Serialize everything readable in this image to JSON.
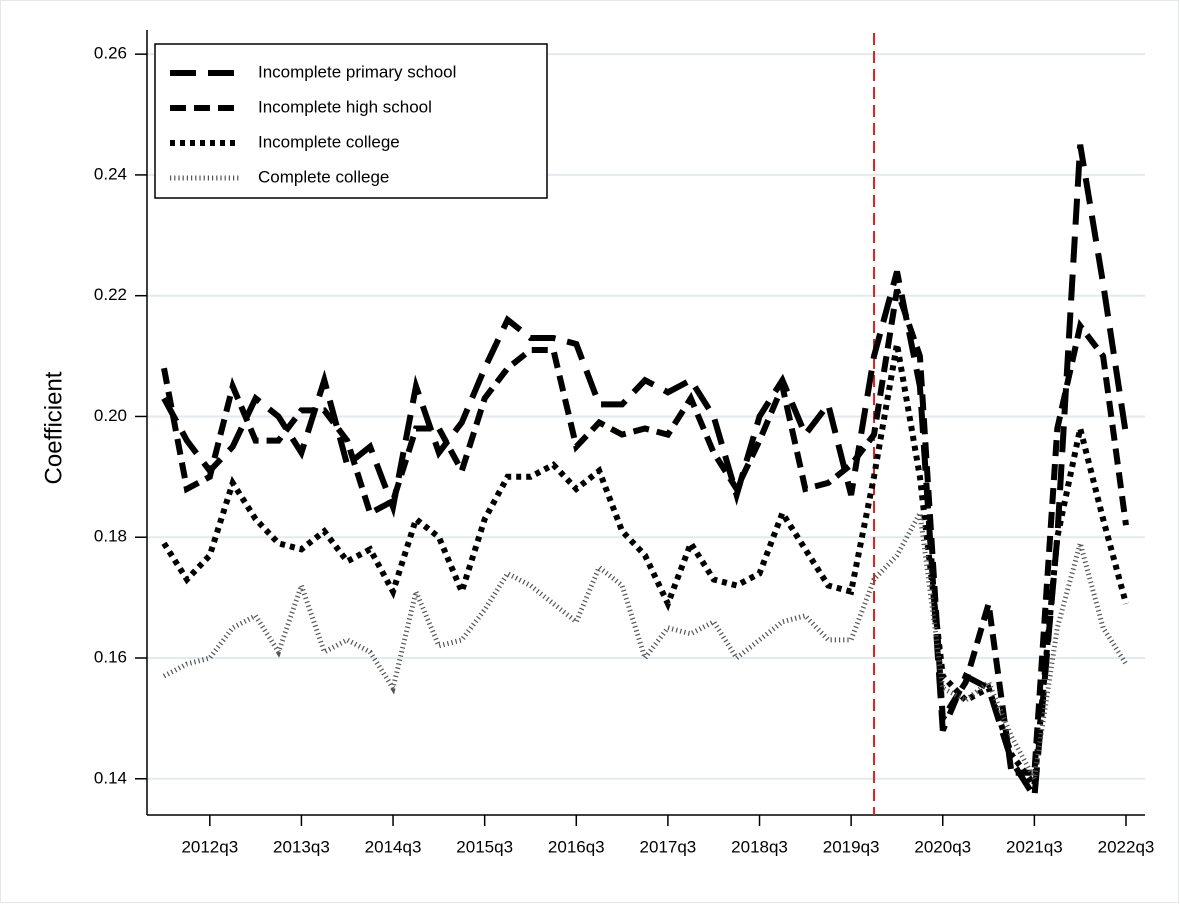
{
  "chart_data": {
    "type": "line",
    "ylabel": "Coefficient",
    "categories": [
      null,
      null,
      "2012q3",
      null,
      null,
      null,
      "2013q3",
      null,
      null,
      null,
      "2014q3",
      null,
      null,
      null,
      "2015q3",
      null,
      null,
      null,
      "2016q3",
      null,
      null,
      null,
      "2017q3",
      null,
      null,
      null,
      "2018q3",
      null,
      null,
      null,
      "2019q3",
      null,
      null,
      null,
      "2020q3",
      null,
      null,
      null,
      "2021q3",
      null,
      null,
      null,
      "2022q3"
    ],
    "series": [
      {
        "name": "Incomplete primary school",
        "color": "#000000",
        "width": 6,
        "dash": "26,12",
        "values": [
          0.203,
          0.196,
          0.191,
          0.195,
          0.203,
          0.2,
          0.194,
          0.206,
          0.192,
          0.195,
          0.185,
          0.205,
          0.194,
          0.199,
          0.208,
          0.216,
          0.213,
          0.213,
          0.212,
          0.202,
          0.202,
          0.206,
          0.204,
          0.206,
          0.2,
          0.187,
          0.2,
          0.206,
          0.197,
          0.202,
          0.187,
          0.21,
          0.224,
          0.205,
          0.148,
          0.157,
          0.155,
          0.143,
          0.137,
          0.18,
          0.245,
          0.222,
          0.197
        ]
      },
      {
        "name": "Incomplete high school",
        "color": "#000000",
        "width": 6,
        "dash": "16,8",
        "values": [
          0.208,
          0.188,
          0.19,
          0.205,
          0.196,
          0.196,
          0.201,
          0.201,
          0.196,
          0.184,
          0.186,
          0.198,
          0.198,
          0.191,
          0.203,
          0.208,
          0.211,
          0.211,
          0.195,
          0.199,
          0.197,
          0.198,
          0.197,
          0.203,
          0.194,
          0.188,
          0.196,
          0.205,
          0.188,
          0.189,
          0.192,
          0.197,
          0.221,
          0.21,
          0.15,
          0.156,
          0.169,
          0.141,
          0.141,
          0.198,
          0.215,
          0.21,
          0.182
        ]
      },
      {
        "name": "Incomplete college",
        "color": "#000000",
        "width": 6,
        "dash": "5,5",
        "values": [
          0.179,
          0.173,
          0.177,
          0.189,
          0.183,
          0.179,
          0.178,
          0.181,
          0.176,
          0.178,
          0.171,
          0.183,
          0.18,
          0.171,
          0.183,
          0.19,
          0.19,
          0.192,
          0.188,
          0.191,
          0.181,
          0.177,
          0.169,
          0.179,
          0.173,
          0.172,
          0.174,
          0.184,
          0.178,
          0.172,
          0.171,
          0.19,
          0.212,
          0.19,
          0.157,
          0.153,
          0.155,
          0.144,
          0.139,
          0.18,
          0.198,
          0.183,
          0.169
        ]
      },
      {
        "name": "Complete college",
        "color": "#555555",
        "width": 5,
        "dash": "1.2,3",
        "values": [
          0.157,
          0.159,
          0.16,
          0.165,
          0.167,
          0.161,
          0.172,
          0.161,
          0.163,
          0.161,
          0.155,
          0.171,
          0.162,
          0.163,
          0.168,
          0.174,
          0.172,
          0.169,
          0.166,
          0.175,
          0.172,
          0.16,
          0.165,
          0.164,
          0.166,
          0.16,
          0.163,
          0.166,
          0.167,
          0.163,
          0.163,
          0.173,
          0.177,
          0.184,
          0.155,
          0.153,
          0.156,
          0.147,
          0.14,
          0.165,
          0.179,
          0.165,
          0.159
        ]
      }
    ],
    "ylim": [
      0.134,
      0.264
    ],
    "yticks": [
      0.14,
      0.16,
      0.18,
      0.2,
      0.22,
      0.24,
      0.26
    ],
    "ytick_labels": [
      "0.14",
      "0.16",
      "0.18",
      "0.20",
      "0.22",
      "0.24",
      "0.26"
    ],
    "vline_index": 31,
    "vline_color": "#e0201b",
    "grid": true,
    "legend": "upper left"
  }
}
